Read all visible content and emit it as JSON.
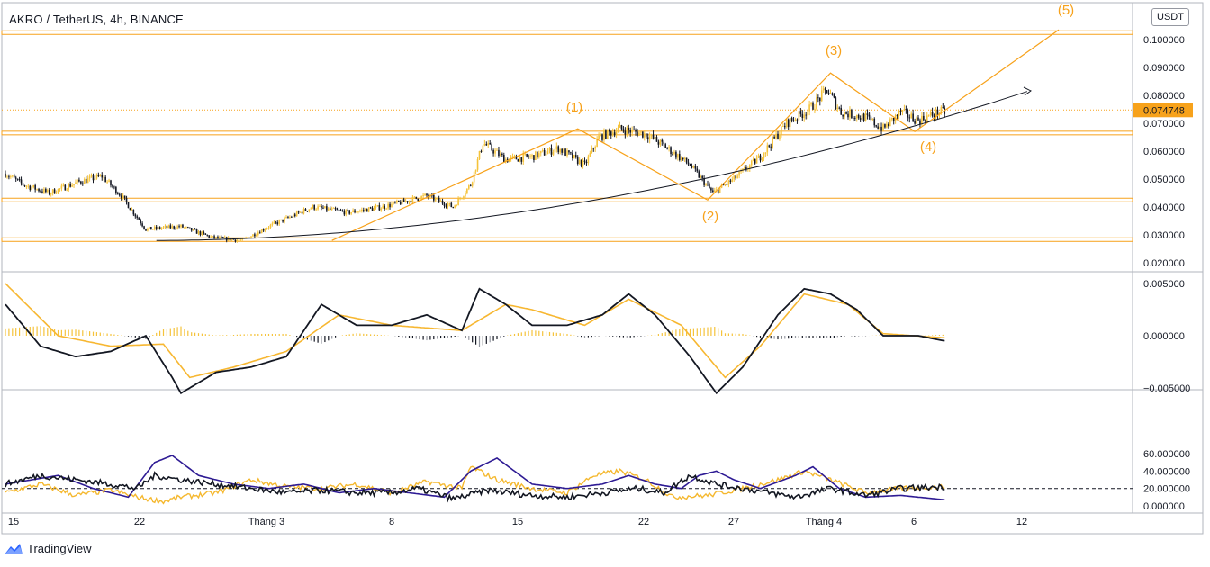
{
  "header": {
    "title": "AKRO / TetherUS, 4h, BINANCE",
    "currency": "USDT"
  },
  "brand": {
    "name": "TradingView"
  },
  "colors": {
    "bull": "#f5c33b",
    "bear": "#131722",
    "accent": "#f7a21b",
    "macd_signal": "#f7b731",
    "macd_line": "#131722",
    "dmi_plus": "#f5b82e",
    "dmi_minus": "#2e1b94",
    "adx": "#131722"
  },
  "chart_data": [
    {
      "type": "candlestick",
      "title": "AKRO / TetherUS, 4h, BINANCE",
      "ylim": [
        0.0175,
        0.104
      ],
      "price_ticks": [
        "0.020000",
        "0.030000",
        "0.040000",
        "0.050000",
        "0.060000",
        "0.070000",
        "0.080000",
        "0.090000",
        "0.100000"
      ],
      "last_price": "0.074748",
      "x_ticks": [
        "15",
        "22",
        "Tháng 3",
        "8",
        "15",
        "22",
        "27",
        "Tháng 4",
        "6",
        "12"
      ],
      "horizontal_levels": [
        0.1025,
        0.0665,
        0.0425,
        0.0283
      ],
      "close_anchors": [
        [
          0,
          0.052
        ],
        [
          10,
          0.048
        ],
        [
          25,
          0.045
        ],
        [
          42,
          0.049
        ],
        [
          55,
          0.051
        ],
        [
          66,
          0.044
        ],
        [
          80,
          0.032
        ],
        [
          100,
          0.033
        ],
        [
          118,
          0.029
        ],
        [
          135,
          0.028
        ],
        [
          150,
          0.033
        ],
        [
          175,
          0.04
        ],
        [
          195,
          0.038
        ],
        [
          215,
          0.04
        ],
        [
          240,
          0.044
        ],
        [
          255,
          0.04
        ],
        [
          265,
          0.048
        ],
        [
          272,
          0.063
        ],
        [
          285,
          0.057
        ],
        [
          300,
          0.058
        ],
        [
          315,
          0.061
        ],
        [
          330,
          0.055
        ],
        [
          338,
          0.065
        ],
        [
          350,
          0.068
        ],
        [
          365,
          0.066
        ],
        [
          375,
          0.062
        ],
        [
          390,
          0.055
        ],
        [
          403,
          0.045
        ],
        [
          415,
          0.05
        ],
        [
          430,
          0.058
        ],
        [
          445,
          0.07
        ],
        [
          458,
          0.075
        ],
        [
          468,
          0.082
        ],
        [
          476,
          0.074
        ],
        [
          490,
          0.072
        ],
        [
          500,
          0.068
        ],
        [
          510,
          0.074
        ],
        [
          520,
          0.071
        ],
        [
          532,
          0.074
        ]
      ],
      "macd": {
        "ylim": [
          -0.0062,
          0.0058
        ],
        "ticks": [
          "0.005000",
          "0.000000",
          "−0.005000"
        ],
        "line_anchors": [
          [
            0,
            0.003
          ],
          [
            20,
            -0.001
          ],
          [
            40,
            -0.002
          ],
          [
            60,
            -0.0015
          ],
          [
            80,
            0.0
          ],
          [
            95,
            -0.004
          ],
          [
            100,
            -0.0055
          ],
          [
            120,
            -0.0035
          ],
          [
            140,
            -0.003
          ],
          [
            160,
            -0.002
          ],
          [
            180,
            0.003
          ],
          [
            200,
            0.001
          ],
          [
            220,
            0.001
          ],
          [
            240,
            0.002
          ],
          [
            260,
            0.0005
          ],
          [
            270,
            0.0045
          ],
          [
            285,
            0.003
          ],
          [
            300,
            0.001
          ],
          [
            320,
            0.001
          ],
          [
            340,
            0.002
          ],
          [
            355,
            0.004
          ],
          [
            370,
            0.002
          ],
          [
            390,
            -0.002
          ],
          [
            405,
            -0.0055
          ],
          [
            420,
            -0.003
          ],
          [
            440,
            0.002
          ],
          [
            455,
            0.0045
          ],
          [
            470,
            0.004
          ],
          [
            485,
            0.0025
          ],
          [
            500,
            0.0
          ],
          [
            520,
            0.0
          ],
          [
            535,
            -0.0005
          ]
        ],
        "signal_anchors": [
          [
            0,
            0.005
          ],
          [
            30,
            0.0
          ],
          [
            60,
            -0.001
          ],
          [
            90,
            -0.0008
          ],
          [
            105,
            -0.004
          ],
          [
            130,
            -0.003
          ],
          [
            160,
            -0.0015
          ],
          [
            190,
            0.002
          ],
          [
            220,
            0.001
          ],
          [
            260,
            0.0005
          ],
          [
            285,
            0.003
          ],
          [
            300,
            0.0025
          ],
          [
            330,
            0.001
          ],
          [
            355,
            0.0035
          ],
          [
            385,
            0.001
          ],
          [
            410,
            -0.004
          ],
          [
            430,
            -0.001
          ],
          [
            455,
            0.004
          ],
          [
            480,
            0.003
          ],
          [
            500,
            0.0002
          ],
          [
            535,
            -0.0002
          ]
        ]
      },
      "dmi": {
        "ylim": [
          -1.5,
          63
        ],
        "ticks": [
          "60.000000",
          "40.000000",
          "20.000000",
          "0.000000"
        ],
        "reference_level": 20,
        "plus_anchors": [
          [
            0,
            15
          ],
          [
            20,
            25
          ],
          [
            40,
            12
          ],
          [
            60,
            18
          ],
          [
            75,
            10
          ],
          [
            90,
            5
          ],
          [
            100,
            10
          ],
          [
            120,
            15
          ],
          [
            140,
            30
          ],
          [
            160,
            22
          ],
          [
            180,
            20
          ],
          [
            200,
            25
          ],
          [
            220,
            15
          ],
          [
            240,
            28
          ],
          [
            260,
            20
          ],
          [
            265,
            45
          ],
          [
            280,
            30
          ],
          [
            300,
            20
          ],
          [
            320,
            15
          ],
          [
            335,
            35
          ],
          [
            350,
            40
          ],
          [
            365,
            30
          ],
          [
            380,
            10
          ],
          [
            400,
            12
          ],
          [
            420,
            20
          ],
          [
            440,
            30
          ],
          [
            455,
            40
          ],
          [
            470,
            30
          ],
          [
            490,
            15
          ],
          [
            510,
            20
          ],
          [
            535,
            22
          ]
        ],
        "minus_anchors": [
          [
            0,
            25
          ],
          [
            30,
            35
          ],
          [
            50,
            20
          ],
          [
            70,
            10
          ],
          [
            85,
            50
          ],
          [
            95,
            58
          ],
          [
            110,
            35
          ],
          [
            130,
            25
          ],
          [
            150,
            20
          ],
          [
            170,
            25
          ],
          [
            190,
            15
          ],
          [
            210,
            20
          ],
          [
            230,
            15
          ],
          [
            250,
            10
          ],
          [
            265,
            40
          ],
          [
            280,
            55
          ],
          [
            300,
            25
          ],
          [
            320,
            20
          ],
          [
            340,
            25
          ],
          [
            355,
            35
          ],
          [
            370,
            25
          ],
          [
            385,
            20
          ],
          [
            395,
            35
          ],
          [
            405,
            40
          ],
          [
            415,
            30
          ],
          [
            430,
            20
          ],
          [
            450,
            35
          ],
          [
            460,
            45
          ],
          [
            475,
            20
          ],
          [
            490,
            10
          ],
          [
            510,
            12
          ],
          [
            535,
            7
          ]
        ],
        "adx_anchors": [
          [
            0,
            25
          ],
          [
            20,
            35
          ],
          [
            40,
            30
          ],
          [
            60,
            25
          ],
          [
            75,
            20
          ],
          [
            85,
            35
          ],
          [
            100,
            30
          ],
          [
            120,
            25
          ],
          [
            140,
            20
          ],
          [
            160,
            15
          ],
          [
            180,
            18
          ],
          [
            200,
            15
          ],
          [
            220,
            15
          ],
          [
            235,
            20
          ],
          [
            255,
            8
          ],
          [
            275,
            18
          ],
          [
            300,
            12
          ],
          [
            320,
            10
          ],
          [
            340,
            15
          ],
          [
            360,
            20
          ],
          [
            375,
            15
          ],
          [
            390,
            35
          ],
          [
            405,
            25
          ],
          [
            420,
            20
          ],
          [
            435,
            15
          ],
          [
            450,
            10
          ],
          [
            470,
            20
          ],
          [
            490,
            12
          ],
          [
            510,
            20
          ],
          [
            535,
            22
          ]
        ]
      }
    }
  ],
  "annotations": {
    "wave1": "(1)",
    "wave2": "(2)",
    "wave3": "(3)",
    "wave4": "(4)",
    "wave5": "(5)"
  }
}
